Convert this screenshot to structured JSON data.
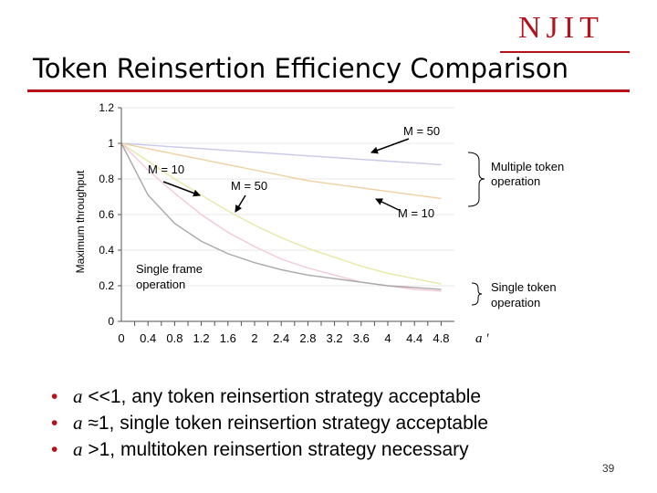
{
  "logo": "NJIT",
  "title": "Token Reinsertion Efficiency Comparison",
  "chart_data": {
    "type": "line",
    "ylabel": "Maximum throughput",
    "x_ticks": [
      "0",
      "0.4",
      "0.8",
      "1.2",
      "1.6",
      "2",
      "2.4",
      "2.8",
      "3.2",
      "3.6",
      "4",
      "4.4",
      "4.8"
    ],
    "x_max": 5.0,
    "y_ticks": [
      "0",
      "0.2",
      "0.4",
      "0.6",
      "0.8",
      "1",
      "1.2"
    ],
    "ylim": [
      0,
      1.2
    ],
    "x_axis_symbol": "a '",
    "series": [
      {
        "color": "#c8c8e8",
        "x": [
          0,
          0.4,
          0.8,
          1.2,
          1.6,
          2,
          2.4,
          2.8,
          3.2,
          3.6,
          4,
          4.4,
          4.8
        ],
        "values": [
          1,
          0.99,
          0.98,
          0.97,
          0.96,
          0.95,
          0.94,
          0.93,
          0.92,
          0.91,
          0.9,
          0.89,
          0.88
        ]
      },
      {
        "color": "#f0d0a0",
        "x": [
          0,
          0.4,
          0.8,
          1.2,
          1.6,
          2,
          2.4,
          2.8,
          3.2,
          3.6,
          4,
          4.4,
          4.8
        ],
        "values": [
          1,
          0.97,
          0.94,
          0.91,
          0.88,
          0.85,
          0.82,
          0.79,
          0.77,
          0.75,
          0.73,
          0.71,
          0.69
        ]
      },
      {
        "color": "#e8e8a8",
        "x": [
          0,
          0.4,
          0.8,
          1.2,
          1.6,
          2,
          2.4,
          2.8,
          3.2,
          3.6,
          4,
          4.4,
          4.8
        ],
        "values": [
          1,
          0.9,
          0.8,
          0.71,
          0.62,
          0.54,
          0.47,
          0.41,
          0.36,
          0.31,
          0.27,
          0.24,
          0.21
        ]
      },
      {
        "color": "#f4c8d8",
        "x": [
          0,
          0.4,
          0.8,
          1.2,
          1.6,
          2,
          2.4,
          2.8,
          3.2,
          3.6,
          4,
          4.4,
          4.8
        ],
        "values": [
          1,
          0.85,
          0.72,
          0.6,
          0.5,
          0.42,
          0.35,
          0.3,
          0.26,
          0.22,
          0.2,
          0.18,
          0.17
        ]
      },
      {
        "color": "#a8a8a8",
        "x": [
          0,
          0.4,
          0.8,
          1.2,
          1.6,
          2,
          2.4,
          2.8,
          3.2,
          3.6,
          4,
          4.4,
          4.8
        ],
        "values": [
          1,
          0.71,
          0.55,
          0.45,
          0.38,
          0.33,
          0.29,
          0.26,
          0.24,
          0.22,
          0.2,
          0.19,
          0.18
        ]
      }
    ],
    "annotations": {
      "m50_top": "M = 50",
      "m10_left": "M = 10",
      "m50_mid": "M = 50",
      "m10_right": "M = 10",
      "multi_token": [
        "Multiple token",
        "operation"
      ],
      "single_frame": [
        "Single frame",
        "operation"
      ],
      "single_token": [
        "Single token",
        "operation"
      ]
    }
  },
  "bullets": [
    {
      "symbol": "a",
      "rest": " <<1,  any token reinsertion strategy acceptable"
    },
    {
      "symbol": "a",
      "rest": " ≈1,  single token reinsertion strategy acceptable"
    },
    {
      "symbol": "a",
      "rest": " >1,  multitoken reinsertion strategy necessary"
    }
  ],
  "bullet_marker": "•",
  "page_number": "39"
}
